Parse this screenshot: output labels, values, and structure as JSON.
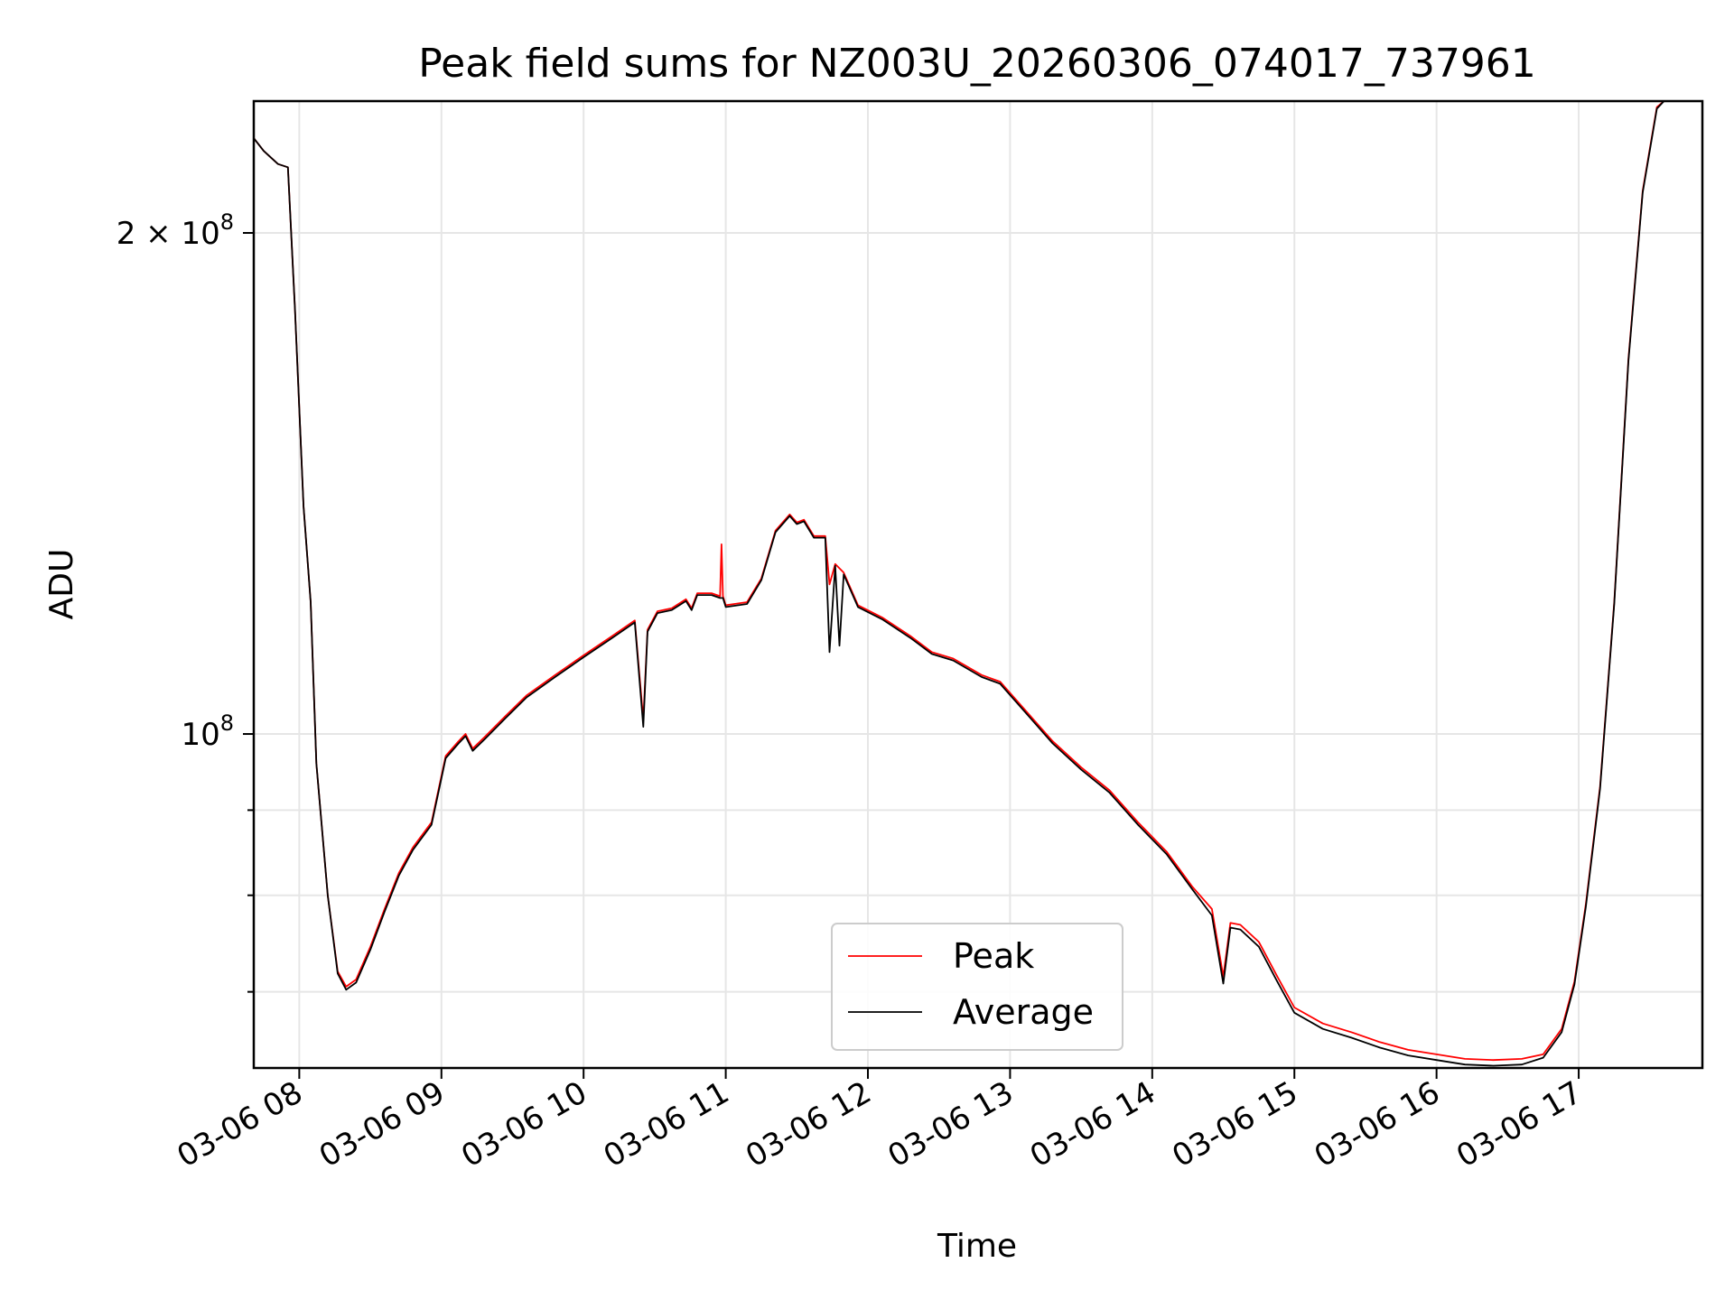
{
  "chart_data": {
    "type": "line",
    "title": "Peak field sums for NZ003U_20260306_074017_737961",
    "xlabel": "Time",
    "ylabel": "ADU",
    "yscale": "log",
    "xlim": [
      7.68,
      17.87
    ],
    "ylim": [
      63000000,
      240000000
    ],
    "grid": true,
    "legend_position": "lower-center",
    "x_ticks": [
      {
        "value": 8,
        "label": "03-06 08"
      },
      {
        "value": 9,
        "label": "03-06 09"
      },
      {
        "value": 10,
        "label": "03-06 10"
      },
      {
        "value": 11,
        "label": "03-06 11"
      },
      {
        "value": 12,
        "label": "03-06 12"
      },
      {
        "value": 13,
        "label": "03-06 13"
      },
      {
        "value": 14,
        "label": "03-06 14"
      },
      {
        "value": 15,
        "label": "03-06 15"
      },
      {
        "value": 16,
        "label": "03-06 16"
      },
      {
        "value": 17,
        "label": "03-06 17"
      }
    ],
    "y_major_ticks": [
      {
        "value": 100000000,
        "base": "10",
        "exp": "8",
        "label": "10^8"
      },
      {
        "value": 200000000,
        "mantissa": "2",
        "base": "10",
        "exp": "8",
        "label": "2x10^8"
      }
    ],
    "y_minor_ticks": [
      70000000,
      80000000,
      90000000
    ],
    "series": [
      {
        "name": "Peak",
        "color": "#ff0000",
        "points": [
          [
            7.68,
            228000000
          ],
          [
            7.75,
            224000000
          ],
          [
            7.85,
            220000000
          ],
          [
            7.92,
            219000000
          ],
          [
            7.97,
            180000000
          ],
          [
            8.03,
            137000000
          ],
          [
            8.08,
            120000000
          ],
          [
            8.12,
            96000000
          ],
          [
            8.2,
            80000000
          ],
          [
            8.27,
            72000000
          ],
          [
            8.33,
            70500000
          ],
          [
            8.4,
            71200000
          ],
          [
            8.5,
            74500000
          ],
          [
            8.6,
            78500000
          ],
          [
            8.7,
            82500000
          ],
          [
            8.8,
            85500000
          ],
          [
            8.93,
            88500000
          ],
          [
            9.03,
            97000000
          ],
          [
            9.12,
            99000000
          ],
          [
            9.17,
            100000000
          ],
          [
            9.22,
            98000000
          ],
          [
            9.3,
            99500000
          ],
          [
            9.45,
            102500000
          ],
          [
            9.6,
            105500000
          ],
          [
            9.8,
            108500000
          ],
          [
            10.0,
            111500000
          ],
          [
            10.2,
            114500000
          ],
          [
            10.36,
            117000000
          ],
          [
            10.42,
            102000000
          ],
          [
            10.45,
            115500000
          ],
          [
            10.52,
            118500000
          ],
          [
            10.62,
            119000000
          ],
          [
            10.72,
            120500000
          ],
          [
            10.76,
            119000000
          ],
          [
            10.8,
            121500000
          ],
          [
            10.9,
            121500000
          ],
          [
            10.96,
            121000000
          ],
          [
            10.97,
            130000000
          ],
          [
            10.98,
            121000000
          ],
          [
            11.0,
            119500000
          ],
          [
            11.15,
            120000000
          ],
          [
            11.25,
            124000000
          ],
          [
            11.35,
            132500000
          ],
          [
            11.45,
            135500000
          ],
          [
            11.5,
            134000000
          ],
          [
            11.55,
            134500000
          ],
          [
            11.62,
            131500000
          ],
          [
            11.7,
            131500000
          ],
          [
            11.73,
            123000000
          ],
          [
            11.77,
            126500000
          ],
          [
            11.83,
            125000000
          ],
          [
            11.93,
            119500000
          ],
          [
            12.1,
            117500000
          ],
          [
            12.3,
            114500000
          ],
          [
            12.45,
            112000000
          ],
          [
            12.6,
            111000000
          ],
          [
            12.8,
            108500000
          ],
          [
            12.93,
            107500000
          ],
          [
            13.1,
            103500000
          ],
          [
            13.3,
            99000000
          ],
          [
            13.5,
            95500000
          ],
          [
            13.7,
            92500000
          ],
          [
            13.9,
            88500000
          ],
          [
            14.1,
            85000000
          ],
          [
            14.28,
            81000000
          ],
          [
            14.42,
            78500000
          ],
          [
            14.5,
            71500000
          ],
          [
            14.55,
            77000000
          ],
          [
            14.62,
            76800000
          ],
          [
            14.75,
            75000000
          ],
          [
            14.88,
            71500000
          ],
          [
            15.0,
            68500000
          ],
          [
            15.2,
            67000000
          ],
          [
            15.4,
            66200000
          ],
          [
            15.6,
            65300000
          ],
          [
            15.8,
            64600000
          ],
          [
            16.0,
            64200000
          ],
          [
            16.2,
            63800000
          ],
          [
            16.4,
            63700000
          ],
          [
            16.6,
            63800000
          ],
          [
            16.75,
            64200000
          ],
          [
            16.88,
            66500000
          ],
          [
            16.97,
            71000000
          ],
          [
            17.05,
            79000000
          ],
          [
            17.15,
            93000000
          ],
          [
            17.25,
            120000000
          ],
          [
            17.35,
            168000000
          ],
          [
            17.45,
            212000000
          ],
          [
            17.55,
            238000000
          ],
          [
            17.6,
            240000000
          ],
          [
            17.87,
            240000000
          ]
        ]
      },
      {
        "name": "Average",
        "color": "#000000",
        "points": [
          [
            7.68,
            228000000
          ],
          [
            7.75,
            224000000
          ],
          [
            7.85,
            220000000
          ],
          [
            7.92,
            219000000
          ],
          [
            7.97,
            180000000
          ],
          [
            8.03,
            137000000
          ],
          [
            8.08,
            120000000
          ],
          [
            8.12,
            96000000
          ],
          [
            8.2,
            80000000
          ],
          [
            8.27,
            71800000
          ],
          [
            8.33,
            70200000
          ],
          [
            8.4,
            70900000
          ],
          [
            8.5,
            74200000
          ],
          [
            8.6,
            78200000
          ],
          [
            8.7,
            82200000
          ],
          [
            8.8,
            85200000
          ],
          [
            8.93,
            88200000
          ],
          [
            9.03,
            96700000
          ],
          [
            9.12,
            98700000
          ],
          [
            9.17,
            99700000
          ],
          [
            9.22,
            97700000
          ],
          [
            9.3,
            99200000
          ],
          [
            9.45,
            102200000
          ],
          [
            9.6,
            105200000
          ],
          [
            9.8,
            108200000
          ],
          [
            10.0,
            111200000
          ],
          [
            10.2,
            114200000
          ],
          [
            10.36,
            116700000
          ],
          [
            10.42,
            101000000
          ],
          [
            10.45,
            115200000
          ],
          [
            10.52,
            118200000
          ],
          [
            10.62,
            118700000
          ],
          [
            10.72,
            120200000
          ],
          [
            10.76,
            118700000
          ],
          [
            10.8,
            121200000
          ],
          [
            10.9,
            121200000
          ],
          [
            10.96,
            120700000
          ],
          [
            10.98,
            120700000
          ],
          [
            11.0,
            119200000
          ],
          [
            11.15,
            119700000
          ],
          [
            11.25,
            123700000
          ],
          [
            11.35,
            132200000
          ],
          [
            11.45,
            135200000
          ],
          [
            11.5,
            133700000
          ],
          [
            11.55,
            134200000
          ],
          [
            11.62,
            131200000
          ],
          [
            11.7,
            131200000
          ],
          [
            11.73,
            112000000
          ],
          [
            11.77,
            126200000
          ],
          [
            11.8,
            113000000
          ],
          [
            11.83,
            124700000
          ],
          [
            11.93,
            119200000
          ],
          [
            12.1,
            117200000
          ],
          [
            12.3,
            114200000
          ],
          [
            12.45,
            111700000
          ],
          [
            12.6,
            110700000
          ],
          [
            12.8,
            108200000
          ],
          [
            12.93,
            107200000
          ],
          [
            13.1,
            103200000
          ],
          [
            13.3,
            98700000
          ],
          [
            13.5,
            95200000
          ],
          [
            13.7,
            92200000
          ],
          [
            13.9,
            88200000
          ],
          [
            14.1,
            84700000
          ],
          [
            14.28,
            80700000
          ],
          [
            14.42,
            77800000
          ],
          [
            14.5,
            70800000
          ],
          [
            14.55,
            76500000
          ],
          [
            14.62,
            76300000
          ],
          [
            14.75,
            74500000
          ],
          [
            14.88,
            71000000
          ],
          [
            15.0,
            68000000
          ],
          [
            15.2,
            66500000
          ],
          [
            15.4,
            65700000
          ],
          [
            15.6,
            64800000
          ],
          [
            15.8,
            64100000
          ],
          [
            16.0,
            63700000
          ],
          [
            16.2,
            63300000
          ],
          [
            16.4,
            63200000
          ],
          [
            16.6,
            63300000
          ],
          [
            16.75,
            63900000
          ],
          [
            16.88,
            66200000
          ],
          [
            16.97,
            70700000
          ],
          [
            17.05,
            78700000
          ],
          [
            17.15,
            92700000
          ],
          [
            17.25,
            119700000
          ],
          [
            17.35,
            167500000
          ],
          [
            17.45,
            211500000
          ],
          [
            17.55,
            237500000
          ],
          [
            17.6,
            240000000
          ],
          [
            17.87,
            240000000
          ]
        ]
      }
    ]
  }
}
